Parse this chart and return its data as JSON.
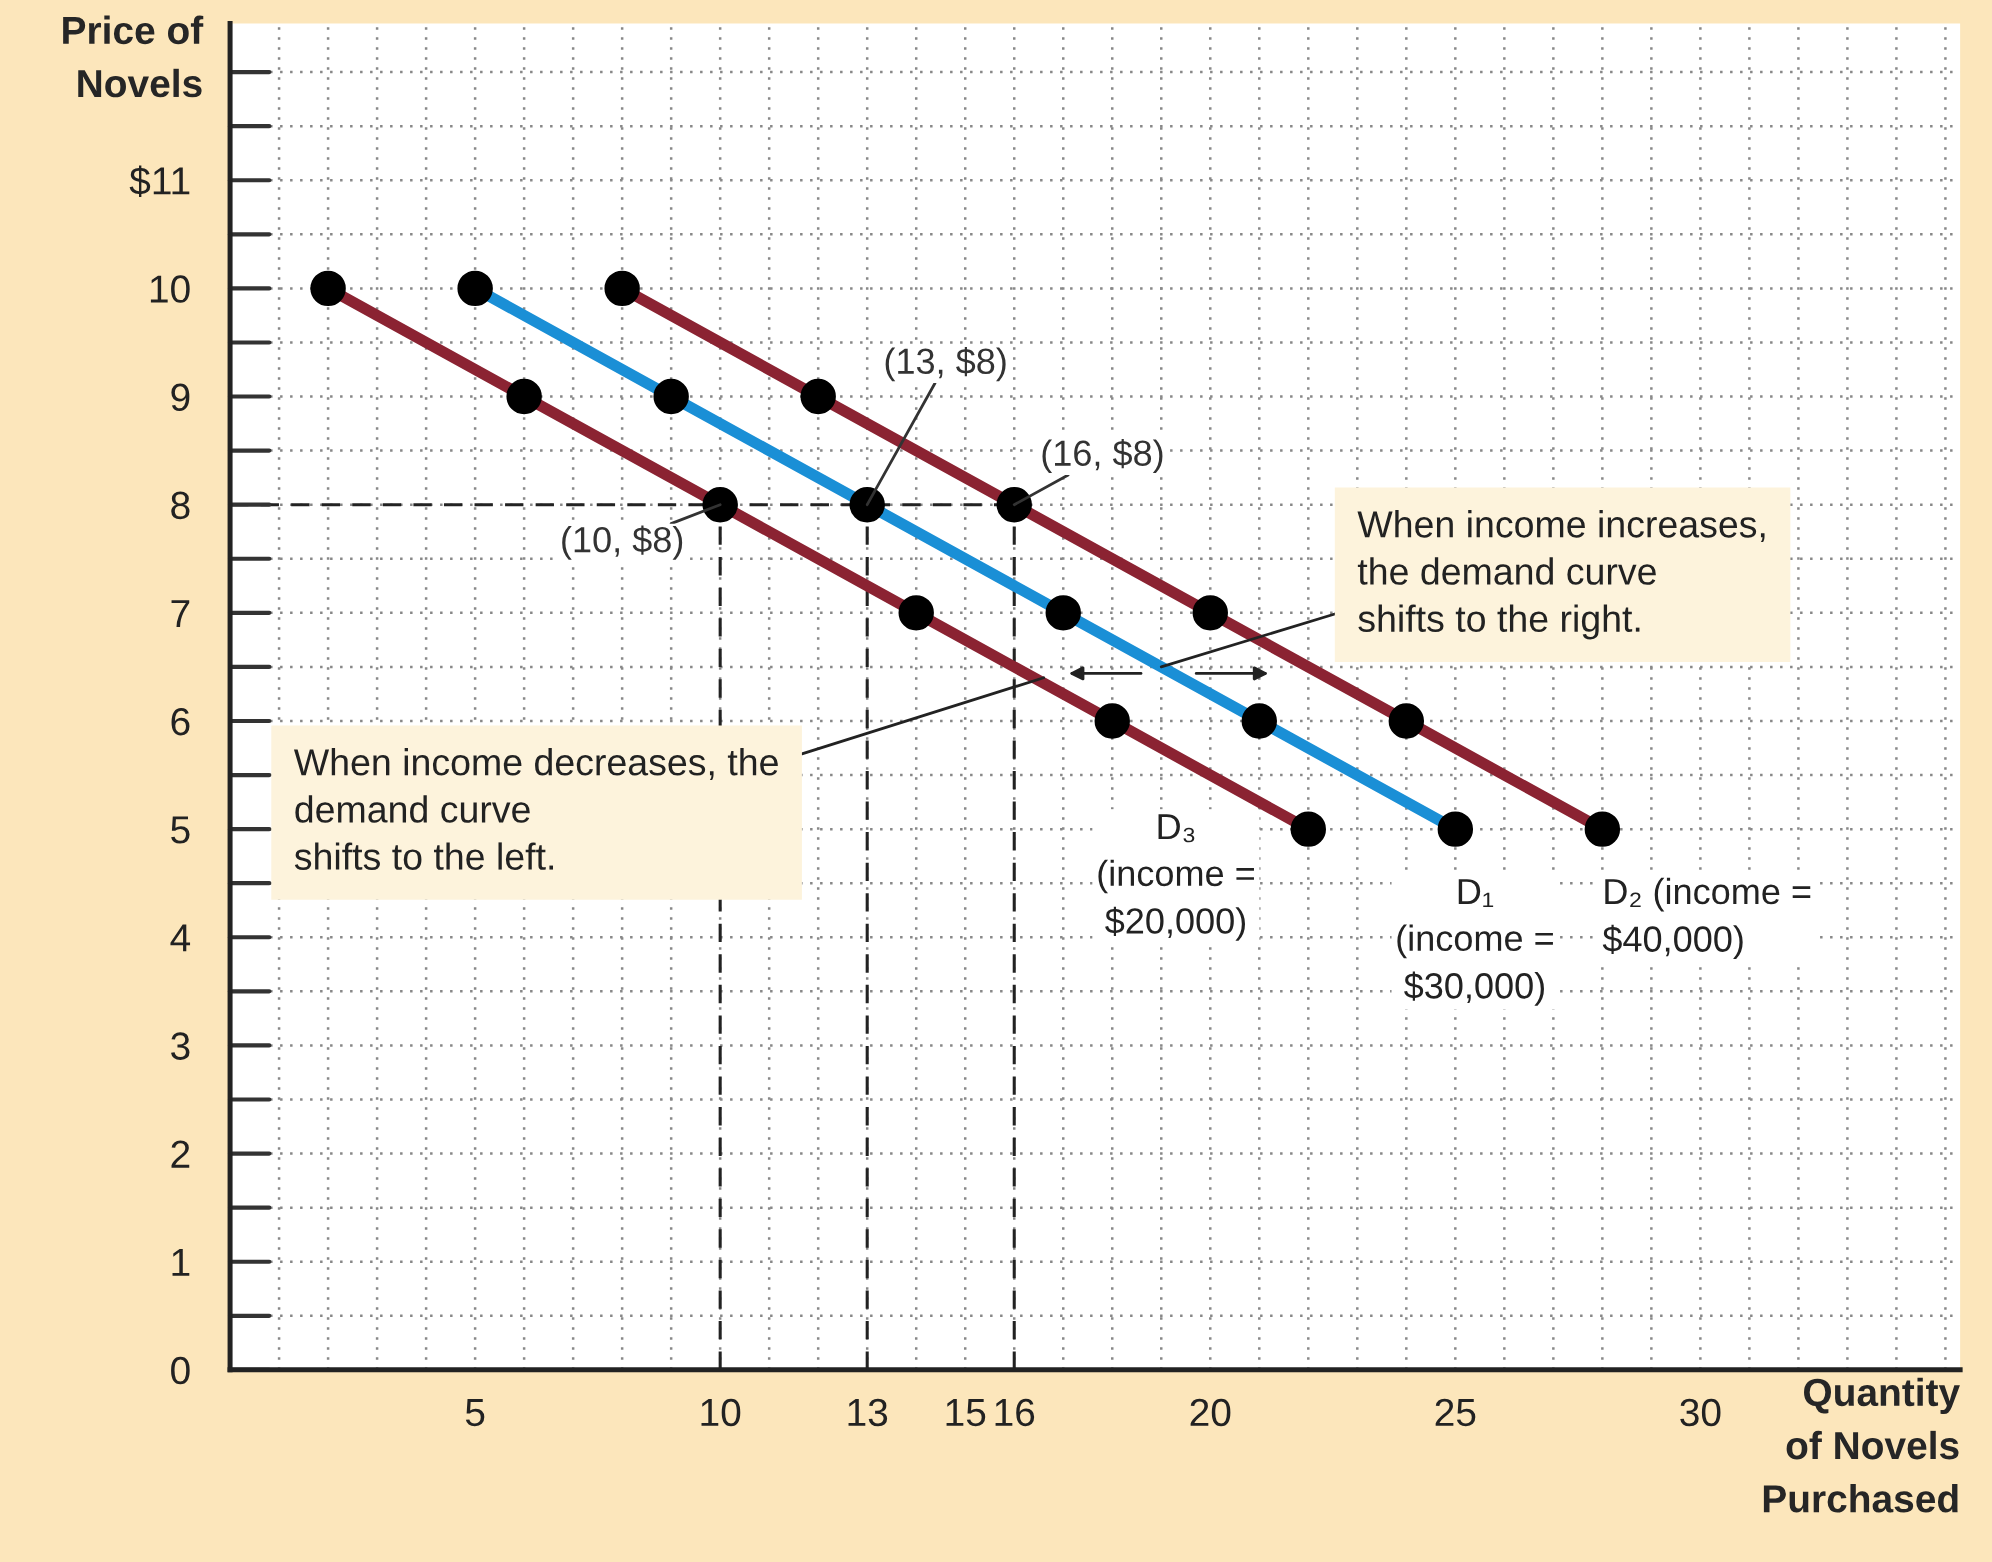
{
  "chart_data": {
    "type": "line",
    "xlabel": "Quantity\nof Novels\nPurchased",
    "ylabel": "Price of\nNovels",
    "xlim": [
      0,
      35.3
    ],
    "ylim": [
      0,
      12.45
    ],
    "xticks": [
      {
        "value": 0,
        "label": null
      },
      {
        "value": 1,
        "label": null
      },
      {
        "value": 2,
        "label": null
      },
      {
        "value": 3,
        "label": null
      },
      {
        "value": 4,
        "label": null
      },
      5,
      {
        "value": 6,
        "label": null
      },
      {
        "value": 7,
        "label": null
      },
      {
        "value": 8,
        "label": null
      },
      {
        "value": 9,
        "label": null
      },
      10,
      {
        "value": 11,
        "label": null
      },
      {
        "value": 12,
        "label": null
      },
      13,
      {
        "value": 14,
        "label": null
      },
      15,
      16,
      {
        "value": 17,
        "label": null
      },
      {
        "value": 18,
        "label": null
      },
      {
        "value": 19,
        "label": null
      },
      20,
      {
        "value": 21,
        "label": null
      },
      {
        "value": 22,
        "label": null
      },
      {
        "value": 23,
        "label": null
      },
      {
        "value": 24,
        "label": null
      },
      25,
      {
        "value": 26,
        "label": null
      },
      {
        "value": 27,
        "label": null
      },
      {
        "value": 28,
        "label": null
      },
      {
        "value": 29,
        "label": null
      },
      30,
      {
        "value": 31,
        "label": null
      },
      {
        "value": 32,
        "label": null
      },
      {
        "value": 33,
        "label": null
      },
      {
        "value": 34,
        "label": null
      },
      {
        "value": 35,
        "label": null
      }
    ],
    "yticks": [
      0,
      {
        "value": 0.5,
        "label": null
      },
      1,
      {
        "value": 1.5,
        "label": null
      },
      2,
      {
        "value": 2.5,
        "label": null
      },
      3,
      {
        "value": 3.5,
        "label": null
      },
      4,
      {
        "value": 4.5,
        "label": null
      },
      5,
      {
        "value": 5.5,
        "label": null
      },
      6,
      {
        "value": 6.5,
        "label": null
      },
      7,
      {
        "value": 7.5,
        "label": null
      },
      8,
      {
        "value": 8.5,
        "label": null
      },
      9,
      {
        "value": 9.5,
        "label": null
      },
      10,
      {
        "value": 10.5,
        "label": null
      },
      {
        "value": 11,
        "label": "$11"
      },
      {
        "value": 11.5,
        "label": null
      },
      {
        "value": 12,
        "label": null
      }
    ],
    "grid": true,
    "legend": false,
    "marker": "circle",
    "series": [
      {
        "name": "D₃\n(income =\n$20,000)",
        "color": "#8b2332",
        "x": [
          2,
          6,
          10,
          14,
          18,
          22
        ],
        "values": [
          10,
          9,
          8,
          7,
          6,
          5
        ]
      },
      {
        "name": "D₁\n(income =\n$30,000)",
        "color": "#1a8fd6",
        "x": [
          5,
          9,
          13,
          17,
          21,
          25
        ],
        "values": [
          10,
          9,
          8,
          7,
          6,
          5
        ]
      },
      {
        "name": "D₂ (income =\n$40,000)",
        "color": "#8b2332",
        "x": [
          8,
          12,
          16,
          20,
          24,
          28
        ],
        "values": [
          10,
          9,
          8,
          7,
          6,
          5
        ]
      },
      {
        "color": "#222222",
        "marker": "none",
        "line_style": "dashed",
        "x": [
          0,
          16
        ],
        "values": [
          8,
          8
        ]
      },
      {
        "color": "#222222",
        "marker": "none",
        "line_style": "dashed",
        "x": [
          10,
          10
        ],
        "values": [
          0,
          8
        ]
      },
      {
        "color": "#222222",
        "marker": "none",
        "line_style": "dashed",
        "x": [
          13,
          13
        ],
        "values": [
          0,
          8
        ]
      },
      {
        "color": "#222222",
        "marker": "none",
        "line_style": "dashed",
        "x": [
          16,
          16
        ],
        "values": [
          0,
          8
        ]
      }
    ],
    "annotations": [
      {
        "text": "(13, $8)",
        "x": 13,
        "y": 8
      },
      {
        "text": "(16, $8)",
        "x": 16,
        "y": 8
      },
      {
        "text": "(10, $8)",
        "x": 10,
        "y": 8
      },
      {
        "text": "When income increases,\nthe demand curve\nshifts to the right.",
        "x": 19.0,
        "y": 6.5
      },
      {
        "text": "When income decreases, the\ndemand curve\nshifts to the left.",
        "x": 16.6,
        "y": 6.4
      }
    ]
  }
}
